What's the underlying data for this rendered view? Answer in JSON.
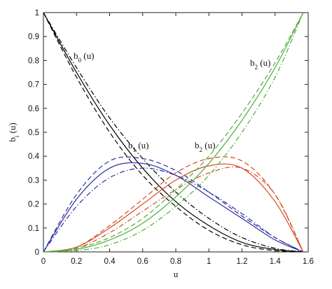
{
  "chart_data": {
    "type": "line",
    "x_label": "u",
    "y_label": {
      "base": "b",
      "sub": "i",
      "suffix": " (u)"
    },
    "x": [
      0,
      0.2,
      0.4,
      0.6,
      0.8,
      1.0,
      1.2,
      1.4,
      1.57
    ],
    "series": [
      {
        "color": "#000000",
        "style": "solid",
        "values": [
          1,
          0.75,
          0.53,
          0.35,
          0.21,
          0.11,
          0.04,
          0.01,
          0
        ]
      },
      {
        "color": "#000000",
        "style": "dashed",
        "values": [
          1,
          0.73,
          0.5,
          0.32,
          0.19,
          0.09,
          0.03,
          0.005,
          0
        ]
      },
      {
        "color": "#000000",
        "style": "dashdot",
        "values": [
          1,
          0.77,
          0.56,
          0.39,
          0.25,
          0.14,
          0.06,
          0.015,
          0
        ]
      },
      {
        "color": "#2e2e9e",
        "style": "solid",
        "values": [
          0,
          0.22,
          0.35,
          0.37,
          0.32,
          0.23,
          0.14,
          0.05,
          0
        ]
      },
      {
        "color": "#2e2e9e",
        "style": "dashed",
        "values": [
          0,
          0.24,
          0.38,
          0.39,
          0.34,
          0.25,
          0.15,
          0.06,
          0
        ]
      },
      {
        "color": "#2e2e9e",
        "style": "dashdot",
        "values": [
          0,
          0.19,
          0.31,
          0.35,
          0.32,
          0.25,
          0.16,
          0.06,
          0
        ]
      },
      {
        "color": "#d4491e",
        "style": "solid",
        "values": [
          0,
          0.02,
          0.1,
          0.2,
          0.3,
          0.36,
          0.35,
          0.21,
          0
        ]
      },
      {
        "color": "#d4491e",
        "style": "dashed",
        "values": [
          0,
          0.02,
          0.11,
          0.22,
          0.33,
          0.39,
          0.38,
          0.24,
          0
        ]
      },
      {
        "color": "#d4491e",
        "style": "dashdot",
        "values": [
          0,
          0.015,
          0.08,
          0.17,
          0.26,
          0.33,
          0.35,
          0.24,
          0
        ]
      },
      {
        "color": "#4fae3a",
        "style": "solid",
        "values": [
          0,
          0.01,
          0.05,
          0.12,
          0.23,
          0.37,
          0.55,
          0.77,
          1
        ]
      },
      {
        "color": "#4fae3a",
        "style": "dashed",
        "values": [
          0,
          0.015,
          0.06,
          0.14,
          0.26,
          0.4,
          0.58,
          0.79,
          1
        ]
      },
      {
        "color": "#4fae3a",
        "style": "dashdot",
        "values": [
          0,
          0.005,
          0.03,
          0.09,
          0.19,
          0.32,
          0.5,
          0.73,
          1
        ]
      }
    ],
    "annotations": [
      {
        "base": "b",
        "sub": "0",
        "suffix": " (u)"
      },
      {
        "base": "b",
        "sub": "2",
        "suffix": " (u)"
      },
      {
        "base": "b",
        "sub": "1",
        "suffix": " (u)"
      },
      {
        "base": "b",
        "sub": "2",
        "suffix": " (u)"
      }
    ],
    "xlim": [
      0,
      1.6
    ],
    "xticks": [
      0,
      0.2,
      0.4,
      0.6,
      0.8,
      1,
      1.2,
      1.4,
      1.6
    ],
    "ylim": [
      0,
      1
    ],
    "yticks": [
      0,
      0.1,
      0.2,
      0.3,
      0.4,
      0.5,
      0.6,
      0.7,
      0.8,
      0.9,
      1
    ],
    "grid": false
  }
}
